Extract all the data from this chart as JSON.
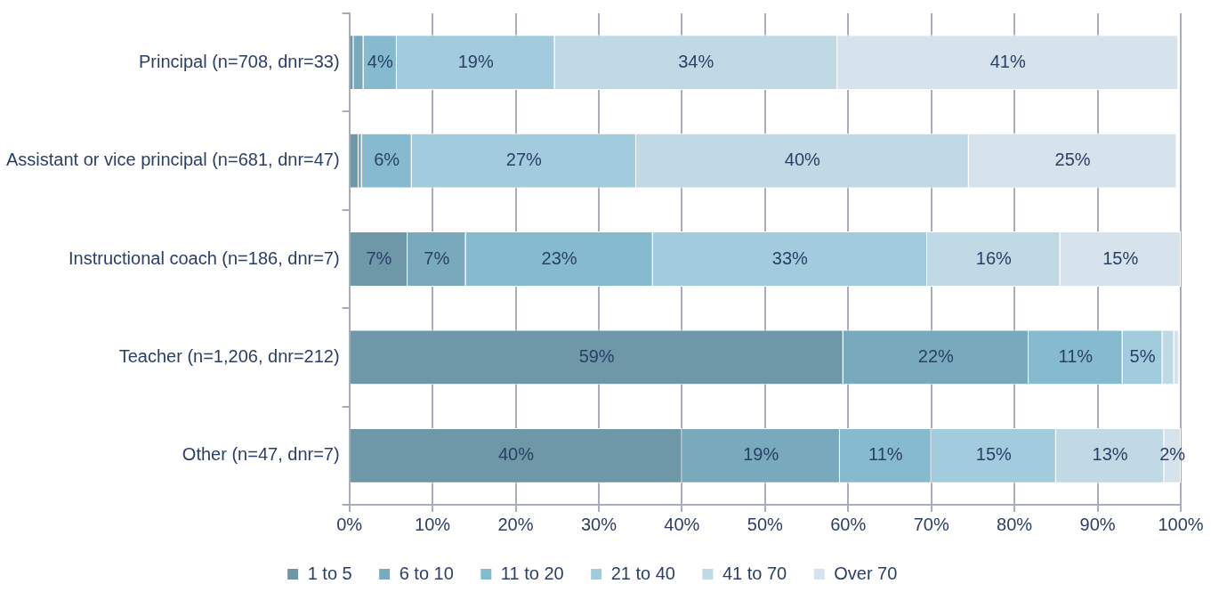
{
  "chart_data": {
    "type": "bar",
    "orientation": "horizontal",
    "stacked": true,
    "categories": [
      "Principal (n=708, dnr=33)",
      "Assistant or vice principal (n=681, dnr=47)",
      "Instructional coach (n=186, dnr=7)",
      "Teacher (n=1,206, dnr=212)",
      "Other (n=47, dnr=7)"
    ],
    "series": [
      {
        "name": "1 to 5",
        "color": "#6e97a8",
        "values": [
          0.5,
          1.1,
          7,
          59.4,
          40
        ],
        "value_labels": [
          null,
          null,
          "7%",
          "59%",
          "40%"
        ]
      },
      {
        "name": "6 to 10",
        "color": "#79a9bc",
        "values": [
          1.2,
          0.4,
          7,
          22.3,
          19
        ],
        "value_labels": [
          null,
          null,
          "7%",
          "22%",
          "19%"
        ]
      },
      {
        "name": "11 to 20",
        "color": "#86bbcf",
        "values": [
          4,
          6,
          22.5,
          11.3,
          11
        ],
        "value_labels": [
          "4%",
          "6%",
          "23%",
          "11%",
          "11%"
        ]
      },
      {
        "name": "21 to 40",
        "color": "#a3cbde",
        "values": [
          19,
          27,
          33,
          4.8,
          15
        ],
        "value_labels": [
          "19%",
          "27%",
          "33%",
          "5%",
          "15%"
        ]
      },
      {
        "name": "41 to 70",
        "color": "#bfd9e5",
        "values": [
          34,
          40,
          16,
          1.4,
          13
        ],
        "value_labels": [
          "34%",
          "40%",
          "16%",
          null,
          "13%"
        ]
      },
      {
        "name": "Over 70",
        "color": "#d6e3ec",
        "values": [
          41,
          25,
          14.5,
          0.6,
          2
        ],
        "value_labels": [
          "41%",
          "25%",
          "15%",
          null,
          "2%"
        ]
      }
    ],
    "xlim": [
      0,
      100
    ],
    "xticks": [
      {
        "value": 0,
        "label": "0%"
      },
      {
        "value": 10,
        "label": "10%"
      },
      {
        "value": 20,
        "label": "20%"
      },
      {
        "value": 30,
        "label": "30%"
      },
      {
        "value": 40,
        "label": "40%"
      },
      {
        "value": 50,
        "label": "50%"
      },
      {
        "value": 60,
        "label": "60%"
      },
      {
        "value": 70,
        "label": "70%"
      },
      {
        "value": 80,
        "label": "80%"
      },
      {
        "value": 90,
        "label": "90%"
      },
      {
        "value": 100,
        "label": "100%"
      }
    ],
    "grid": "x",
    "legend": "bottom"
  }
}
